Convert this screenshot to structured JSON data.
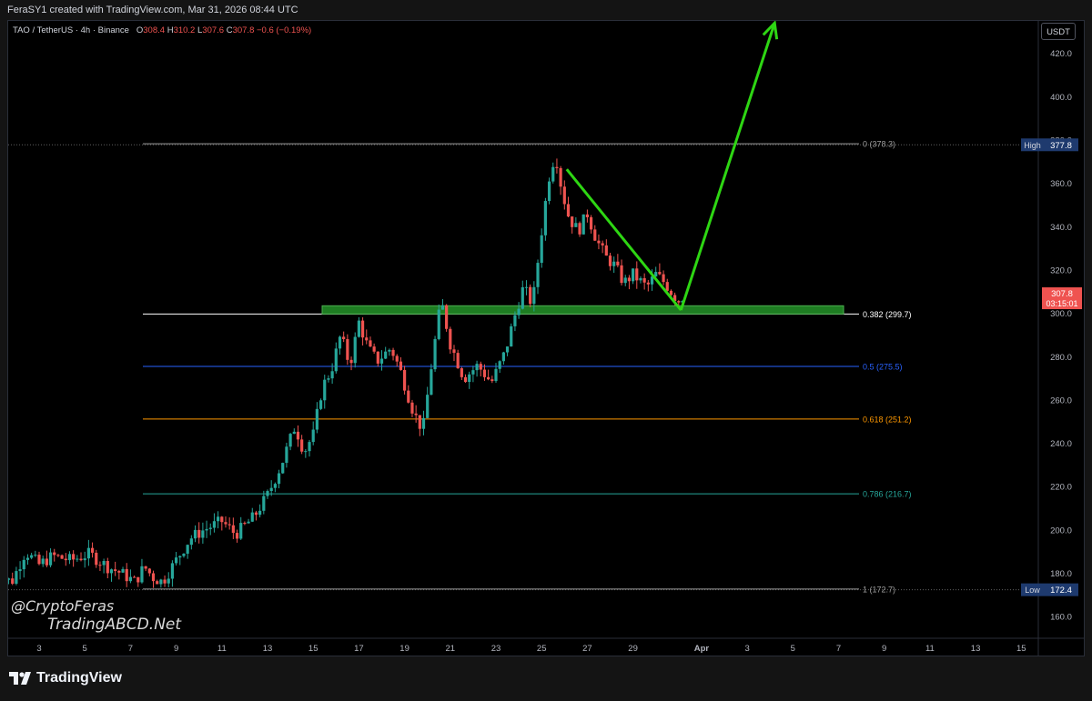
{
  "header": {
    "credit": "FeraSY1 created with TradingView.com, Mar 31, 2026 08:44 UTC"
  },
  "legend": {
    "symbol": "TAO / TetherUS · 4h · Binance",
    "o_label": "O",
    "o_value": "308.4",
    "h_label": "H",
    "h_value": "310.2",
    "l_label": "L",
    "l_value": "307.6",
    "c_label": "C",
    "c_value": "307.8",
    "change": "−0.6 (−0.19%)"
  },
  "currency": "USDT",
  "watermark": {
    "line1": "@CryptoFeras",
    "line2": "TradingABCD.Net"
  },
  "footer": {
    "brand": "TradingView"
  },
  "colors": {
    "up": "#26a69a",
    "down": "#ef5350",
    "arrow": "#2ed613",
    "zone": "#1e7d22",
    "background": "#000000"
  },
  "chart_data": {
    "type": "candlestick",
    "timeframe": "4h",
    "y_axis": {
      "ylim": [
        150,
        435
      ],
      "ticks": [
        "160.0",
        "180.0",
        "200.0",
        "220.0",
        "240.0",
        "260.0",
        "280.0",
        "300.0",
        "320.0",
        "340.0",
        "360.0",
        "380.0",
        "400.0",
        "420.0"
      ]
    },
    "x_axis": {
      "ticks": [
        "3",
        "5",
        "7",
        "9",
        "11",
        "13",
        "15",
        "17",
        "19",
        "21",
        "23",
        "25",
        "27",
        "29",
        "Apr",
        "3",
        "5",
        "7",
        "9",
        "11",
        "13",
        "15"
      ]
    },
    "price_markers": [
      {
        "label": "High",
        "value": "377.8",
        "price": 377.8,
        "color": "#1e3a6e"
      },
      {
        "label": "",
        "value": "307.8",
        "sub": "03:15:01",
        "price": 307.8,
        "color": "#ef5350"
      },
      {
        "label": "Low",
        "value": "172.4",
        "price": 172.4,
        "color": "#1e3a6e"
      }
    ],
    "fibonacci": [
      {
        "level": "0 (378.3)",
        "price": 378.3,
        "color": "#9e9e9e"
      },
      {
        "level": "0.382 (299.7)",
        "price": 299.7,
        "color": "#ffffff"
      },
      {
        "level": "0.5 (275.5)",
        "price": 275.5,
        "color": "#2962ff"
      },
      {
        "level": "0.618 (251.2)",
        "price": 251.2,
        "color": "#ff9800"
      },
      {
        "level": "0.786 (216.7)",
        "price": 216.7,
        "color": "#26a69a"
      },
      {
        "level": "1 (172.7)",
        "price": 172.7,
        "color": "#9e9e9e"
      }
    ],
    "support_zone": {
      "low": 299.7,
      "high": 303.5
    },
    "drawings": {
      "down_line": {
        "from_day": 26.1,
        "from_price": 366.5,
        "to_day": 31.1,
        "to_price": 301.5
      },
      "up_arrow": {
        "from_day": 31.1,
        "from_price": 301.5,
        "to_day": 35.2,
        "to_price": 434
      }
    },
    "path_points": [
      [
        1.0,
        180
      ],
      [
        1.8,
        176
      ],
      [
        2.4,
        190
      ],
      [
        3.0,
        184
      ],
      [
        3.6,
        188
      ],
      [
        4.4,
        186
      ],
      [
        5.2,
        189
      ],
      [
        6.0,
        183
      ],
      [
        6.6,
        180
      ],
      [
        7.2,
        176
      ],
      [
        7.6,
        183
      ],
      [
        8.0,
        178
      ],
      [
        8.4,
        176
      ],
      [
        9.0,
        186
      ],
      [
        9.6,
        196
      ],
      [
        10.2,
        200
      ],
      [
        11.0,
        204
      ],
      [
        11.6,
        198
      ],
      [
        12.4,
        206
      ],
      [
        13.0,
        216
      ],
      [
        13.6,
        230
      ],
      [
        14.2,
        248
      ],
      [
        14.6,
        236
      ],
      [
        15.0,
        244
      ],
      [
        15.4,
        266
      ],
      [
        15.8,
        274
      ],
      [
        16.2,
        290
      ],
      [
        16.6,
        276
      ],
      [
        17.0,
        296
      ],
      [
        17.4,
        284
      ],
      [
        17.8,
        278
      ],
      [
        18.4,
        284
      ],
      [
        18.8,
        274
      ],
      [
        19.4,
        254
      ],
      [
        19.8,
        246
      ],
      [
        20.2,
        278
      ],
      [
        20.6,
        306
      ],
      [
        21.0,
        286
      ],
      [
        21.6,
        270
      ],
      [
        22.2,
        276
      ],
      [
        22.8,
        268
      ],
      [
        23.4,
        282
      ],
      [
        23.8,
        298
      ],
      [
        24.2,
        312
      ],
      [
        24.6,
        304
      ],
      [
        25.0,
        338
      ],
      [
        25.3,
        362
      ],
      [
        25.6,
        374
      ],
      [
        25.9,
        356
      ],
      [
        26.2,
        344
      ],
      [
        26.6,
        338
      ],
      [
        27.0,
        346
      ],
      [
        27.4,
        334
      ],
      [
        27.8,
        326
      ],
      [
        28.2,
        322
      ],
      [
        28.6,
        314
      ],
      [
        29.0,
        318
      ],
      [
        29.6,
        312
      ],
      [
        30.0,
        318
      ],
      [
        30.4,
        314
      ],
      [
        30.8,
        308
      ],
      [
        31.0,
        306
      ],
      [
        31.2,
        308
      ]
    ]
  }
}
